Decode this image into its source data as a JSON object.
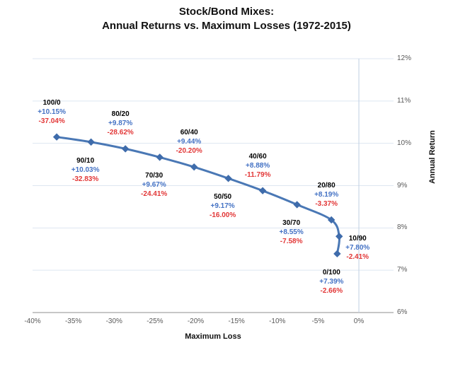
{
  "chart": {
    "title_line1": "Stock/Bond Mixes:",
    "title_line2": "Annual Returns vs. Maximum Losses (1972-2015)",
    "x_axis_title": "Maximum Loss",
    "y_axis_title": "Annual Return"
  },
  "chart_data": {
    "type": "line",
    "title": "Stock/Bond Mixes: Annual Returns vs. Maximum Losses (1972-2015)",
    "xlabel": "Maximum Loss",
    "ylabel": "Annual Return",
    "xlim": [
      -40,
      4.25
    ],
    "ylim": [
      6,
      12
    ],
    "x_tick_values": [
      -40,
      -35,
      -30,
      -25,
      -20,
      -15,
      -10,
      -5,
      0
    ],
    "x_tick_labels": [
      "-40%",
      "-35%",
      "-30%",
      "-25%",
      "-20%",
      "-15%",
      "-10%",
      "-5%",
      "0%"
    ],
    "y_tick_values": [
      6,
      7,
      8,
      9,
      10,
      11,
      12
    ],
    "y_tick_labels": [
      "6%",
      "7%",
      "8%",
      "9%",
      "10%",
      "11%",
      "12%"
    ],
    "grid": "horizontal-plus-zero-vertical",
    "legend": "none",
    "smoothed_line": true,
    "marker": "diamond",
    "points": [
      {
        "mix": "100/0",
        "max_loss": -37.04,
        "annual_return": 10.15,
        "return_label": "+10.15%",
        "loss_label": "-37.04%",
        "label_pos": "above"
      },
      {
        "mix": "90/10",
        "max_loss": -32.83,
        "annual_return": 10.03,
        "return_label": "+10.03%",
        "loss_label": "-32.83%",
        "label_pos": "below"
      },
      {
        "mix": "80/20",
        "max_loss": -28.62,
        "annual_return": 9.87,
        "return_label": "+9.87%",
        "loss_label": "-28.62%",
        "label_pos": "above"
      },
      {
        "mix": "70/30",
        "max_loss": -24.41,
        "annual_return": 9.67,
        "return_label": "+9.67%",
        "loss_label": "-24.41%",
        "label_pos": "below"
      },
      {
        "mix": "60/40",
        "max_loss": -20.2,
        "annual_return": 9.44,
        "return_label": "+9.44%",
        "loss_label": "-20.20%",
        "label_pos": "above"
      },
      {
        "mix": "50/50",
        "max_loss": -16.0,
        "annual_return": 9.17,
        "return_label": "+9.17%",
        "loss_label": "-16.00%",
        "label_pos": "below"
      },
      {
        "mix": "40/60",
        "max_loss": -11.79,
        "annual_return": 8.88,
        "return_label": "+8.88%",
        "loss_label": "-11.79%",
        "label_pos": "above"
      },
      {
        "mix": "30/70",
        "max_loss": -7.58,
        "annual_return": 8.55,
        "return_label": "+8.55%",
        "loss_label": "-7.58%",
        "label_pos": "below"
      },
      {
        "mix": "20/80",
        "max_loss": -3.37,
        "annual_return": 8.19,
        "return_label": "+8.19%",
        "loss_label": "-3.37%",
        "label_pos": "above"
      },
      {
        "mix": "10/90",
        "max_loss": -2.41,
        "annual_return": 7.8,
        "return_label": "+7.80%",
        "loss_label": "-2.41%",
        "label_pos": "right"
      },
      {
        "mix": "0/100",
        "max_loss": -2.66,
        "annual_return": 7.39,
        "return_label": "+7.39%",
        "loss_label": "-2.66%",
        "label_pos": "below"
      }
    ],
    "colors": {
      "line": "#4a78b5",
      "marker": "#3f6cab",
      "mix_label": "#000000",
      "return_label": "#4472c4",
      "loss_label": "#e23737",
      "gridline": "#dde6f1",
      "zero_line": "#bfcfe3",
      "axis_line": "#8f8f8f",
      "tick_text": "#595959",
      "title_text": "#111111"
    }
  }
}
